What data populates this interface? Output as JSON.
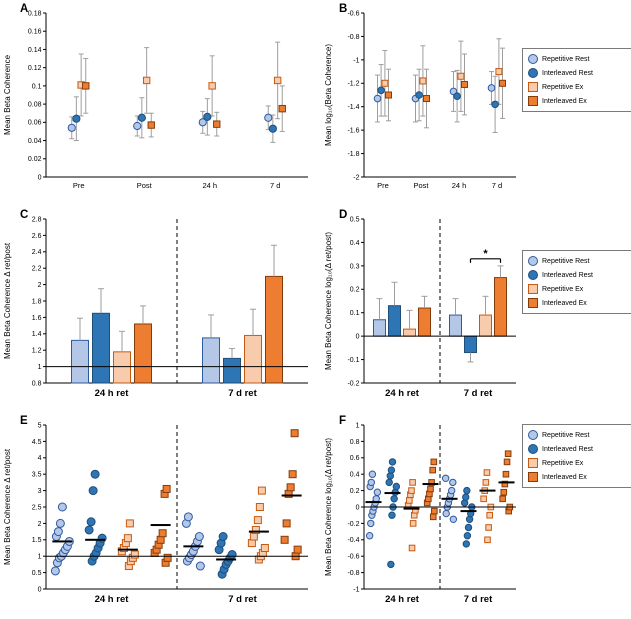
{
  "figure": {
    "background": "#ffffff"
  },
  "styles": {
    "rep_rest": {
      "shape": "circle",
      "fill": "#b4c7e7",
      "stroke": "#2e5b9f"
    },
    "int_rest": {
      "shape": "circle",
      "fill": "#2e75b6",
      "stroke": "#1f4e79"
    },
    "rep_ex": {
      "shape": "square",
      "fill": "#f8cbad",
      "stroke": "#c55a11"
    },
    "int_ex": {
      "shape": "square",
      "fill": "#ed7d31",
      "stroke": "#843c0c"
    }
  },
  "legend": {
    "entries": [
      {
        "key": "rep_rest",
        "label": "Repetitive Rest"
      },
      {
        "key": "int_rest",
        "label": "Interleaved Rest"
      },
      {
        "key": "rep_ex",
        "label": "Repetitive Ex"
      },
      {
        "key": "int_ex",
        "label": "Interleaved Ex"
      }
    ]
  },
  "chart_data": [
    {
      "id": "A",
      "label": "A",
      "type": "scatter",
      "render": "points",
      "ylabel": "Mean Beta Coherence",
      "ylim": [
        0,
        0.18
      ],
      "ytick_vals": [
        0,
        0.02,
        0.04,
        0.06,
        0.08,
        0.1,
        0.12,
        0.14,
        0.16,
        0.18
      ],
      "ytick_labels": [
        "0",
        "0.02",
        "0.04",
        "0.06",
        "0.08",
        "0.1",
        "0.12",
        "0.14",
        "0.16",
        "0.18"
      ],
      "categories": [
        "Pre",
        "Post",
        "24 h",
        "7 d"
      ],
      "series": [
        {
          "key": "rep_rest",
          "name": "Repetitive Rest",
          "values": [
            0.054,
            0.056,
            0.06,
            0.065
          ],
          "errors": [
            0.012,
            0.011,
            0.012,
            0.013
          ]
        },
        {
          "key": "int_rest",
          "name": "Interleaved Rest",
          "values": [
            0.064,
            0.065,
            0.066,
            0.053
          ],
          "errors": [
            0.024,
            0.022,
            0.02,
            0.015
          ]
        },
        {
          "key": "rep_ex",
          "name": "Repetitive Ex",
          "values": [
            0.101,
            0.106,
            0.1,
            0.106
          ],
          "errors": [
            0.034,
            0.036,
            0.033,
            0.042
          ]
        },
        {
          "key": "int_ex",
          "name": "Interleaved Ex",
          "values": [
            0.1,
            0.057,
            0.058,
            0.075
          ],
          "errors": [
            0.03,
            0.013,
            0.013,
            0.025
          ]
        }
      ]
    },
    {
      "id": "B",
      "label": "B",
      "type": "scatter",
      "render": "points",
      "ylabel": "Mean log₁₀(Beta Coherence)",
      "ylim": [
        -2,
        -0.6
      ],
      "ytick_vals": [
        -2,
        -1.8,
        -1.6,
        -1.4,
        -1.2,
        -1,
        -0.8,
        -0.6
      ],
      "ytick_labels": [
        "-2",
        "-1.8",
        "-1.6",
        "-1.4",
        "-1.2",
        "-1",
        "-0.8",
        "-0.6"
      ],
      "categories": [
        "Pre",
        "Post",
        "24 h",
        "7 d"
      ],
      "series": [
        {
          "key": "rep_rest",
          "name": "Repetitive Rest",
          "values": [
            -1.33,
            -1.33,
            -1.27,
            -1.24
          ],
          "errors": [
            0.2,
            0.2,
            0.17,
            0.14
          ]
        },
        {
          "key": "int_rest",
          "name": "Interleaved Rest",
          "values": [
            -1.26,
            -1.3,
            -1.31,
            -1.38
          ],
          "errors": [
            0.22,
            0.22,
            0.22,
            0.24
          ]
        },
        {
          "key": "rep_ex",
          "name": "Repetitive Ex",
          "values": [
            -1.2,
            -1.18,
            -1.14,
            -1.1
          ],
          "errors": [
            0.28,
            0.3,
            0.3,
            0.28
          ]
        },
        {
          "key": "int_ex",
          "name": "Interleaved Ex",
          "values": [
            -1.3,
            -1.33,
            -1.21,
            -1.2
          ],
          "errors": [
            0.22,
            0.25,
            0.26,
            0.3
          ]
        }
      ]
    },
    {
      "id": "C",
      "label": "C",
      "type": "bar",
      "render": "bars",
      "ylabel": "Mean Beta Coherence Δ ret/post",
      "ylim": [
        0.8,
        2.8
      ],
      "ytick_vals": [
        0.8,
        1,
        1.2,
        1.4,
        1.6,
        1.8,
        2,
        2.2,
        2.4,
        2.6,
        2.8
      ],
      "ytick_labels": [
        "0.8",
        "1",
        "1.2",
        "1.4",
        "1.6",
        "1.8",
        "2",
        "2.2",
        "2.4",
        "2.6",
        "2.8"
      ],
      "groups": [
        "24 h ret",
        "7 d ret"
      ],
      "baseline": 0.8,
      "refline": 1,
      "divider": true,
      "series": [
        {
          "key": "rep_rest",
          "name": "Repetitive Rest",
          "values": [
            1.32,
            1.35
          ],
          "errors": [
            0.27,
            0.28
          ]
        },
        {
          "key": "int_rest",
          "name": "Interleaved Rest",
          "values": [
            1.65,
            1.1
          ],
          "errors": [
            0.3,
            0.12
          ]
        },
        {
          "key": "rep_ex",
          "name": "Repetitive Ex",
          "values": [
            1.18,
            1.38
          ],
          "errors": [
            0.25,
            0.32
          ]
        },
        {
          "key": "int_ex",
          "name": "Interleaved Ex",
          "values": [
            1.52,
            2.1
          ],
          "errors": [
            0.22,
            0.38
          ]
        }
      ]
    },
    {
      "id": "D",
      "label": "D",
      "type": "bar",
      "render": "bars",
      "ylabel": "Mean Beta Coherence log₁₀(Δ ret/post)",
      "ylim": [
        -0.2,
        0.5
      ],
      "ytick_vals": [
        -0.2,
        -0.1,
        0,
        0.1,
        0.2,
        0.3,
        0.4,
        0.5
      ],
      "ytick_labels": [
        "-0.2",
        "-0.1",
        "0",
        "0.1",
        "0.2",
        "0.3",
        "0.4",
        "0.5"
      ],
      "groups": [
        "24 h ret",
        "7 d ret"
      ],
      "baseline": 0,
      "refline": 0,
      "divider": true,
      "sig": {
        "group": 1,
        "from": 1,
        "to": 3,
        "y": 0.33,
        "label": "*"
      },
      "series": [
        {
          "key": "rep_rest",
          "name": "Repetitive Rest",
          "values": [
            0.07,
            0.09
          ],
          "errors": [
            0.09,
            0.07
          ]
        },
        {
          "key": "int_rest",
          "name": "Interleaved Rest",
          "values": [
            0.13,
            -0.07
          ],
          "errors": [
            0.1,
            0.04
          ]
        },
        {
          "key": "rep_ex",
          "name": "Repetitive Ex",
          "values": [
            0.03,
            0.09
          ],
          "errors": [
            0.08,
            0.08
          ]
        },
        {
          "key": "int_ex",
          "name": "Interleaved Ex",
          "values": [
            0.12,
            0.25
          ],
          "errors": [
            0.05,
            0.05
          ]
        }
      ]
    },
    {
      "id": "E",
      "label": "E",
      "type": "scatter",
      "render": "jitter",
      "ylabel": "Mean Beta Coherence Δ ret/post",
      "ylim": [
        0,
        5
      ],
      "ytick_vals": [
        0,
        0.5,
        1,
        1.5,
        2,
        2.5,
        3,
        3.5,
        4,
        4.5,
        5
      ],
      "ytick_labels": [
        "0",
        "0.5",
        "1",
        "1.5",
        "2",
        "2.5",
        "3",
        "3.5",
        "4",
        "4.5",
        "5"
      ],
      "groups": [
        "24 h ret",
        "7 d ret"
      ],
      "refline": 1,
      "divider": true,
      "series": [
        {
          "key": "rep_rest",
          "name": "Repetitive Rest",
          "points": [
            [
              0.55,
              0.8,
              0.95,
              1.0,
              1.1,
              1.2,
              1.3,
              1.45,
              1.6,
              1.75,
              2.0,
              2.5
            ],
            [
              0.7,
              0.85,
              0.95,
              1.05,
              1.15,
              1.3,
              1.45,
              1.6,
              2.0,
              2.2
            ]
          ],
          "means": [
            1.45,
            1.3
          ]
        },
        {
          "key": "int_rest",
          "name": "Interleaved Rest",
          "points": [
            [
              0.85,
              1.0,
              1.1,
              1.25,
              1.4,
              1.55,
              1.8,
              2.05,
              3.0,
              3.5
            ],
            [
              0.45,
              0.6,
              0.75,
              0.85,
              0.95,
              1.05,
              1.2,
              1.4,
              1.6
            ]
          ],
          "means": [
            1.5,
            0.9
          ]
        },
        {
          "key": "rep_ex",
          "name": "Repetitive Ex",
          "points": [
            [
              0.7,
              0.85,
              0.95,
              1.05,
              1.15,
              1.25,
              1.4,
              1.55,
              2.0
            ],
            [
              0.9,
              1.0,
              1.1,
              1.25,
              1.4,
              1.6,
              1.8,
              2.1,
              2.5,
              3.0
            ]
          ],
          "means": [
            1.2,
            1.75
          ]
        },
        {
          "key": "int_ex",
          "name": "Interleaved Ex",
          "points": [
            [
              0.8,
              0.95,
              1.1,
              1.2,
              1.35,
              1.5,
              1.7,
              2.9,
              3.05
            ],
            [
              1.0,
              1.2,
              1.5,
              2.0,
              2.9,
              3.1,
              3.5,
              4.75
            ]
          ],
          "means": [
            1.95,
            2.85
          ]
        }
      ]
    },
    {
      "id": "F",
      "label": "F",
      "type": "scatter",
      "render": "jitter",
      "ylabel": "Mean Beta Coherence log₁₀(Δ ret/post)",
      "ylim": [
        -1,
        1
      ],
      "ytick_vals": [
        -1,
        -0.8,
        -0.6,
        -0.4,
        -0.2,
        0,
        0.2,
        0.4,
        0.6,
        0.8,
        1
      ],
      "ytick_labels": [
        "-1",
        "-0.8",
        "-0.6",
        "-0.4",
        "-0.2",
        "0",
        "0.2",
        "0.4",
        "0.6",
        "0.8",
        "1"
      ],
      "groups": [
        "24 h ret",
        "7 d ret"
      ],
      "refline": 0,
      "divider": true,
      "series": [
        {
          "key": "rep_rest",
          "name": "Repetitive Rest",
          "points": [
            [
              -0.35,
              -0.2,
              -0.1,
              -0.05,
              0.0,
              0.05,
              0.1,
              0.18,
              0.25,
              0.3,
              0.4
            ],
            [
              -0.15,
              -0.08,
              0.0,
              0.05,
              0.1,
              0.15,
              0.2,
              0.3,
              0.35
            ]
          ],
          "means": [
            0.06,
            0.1
          ]
        },
        {
          "key": "int_rest",
          "name": "Interleaved Rest",
          "points": [
            [
              -0.7,
              -0.1,
              0.0,
              0.1,
              0.18,
              0.25,
              0.3,
              0.38,
              0.45,
              0.55
            ],
            [
              -0.45,
              -0.35,
              -0.25,
              -0.15,
              -0.08,
              0.0,
              0.05,
              0.12,
              0.2
            ]
          ],
          "means": [
            0.17,
            -0.05
          ]
        },
        {
          "key": "rep_ex",
          "name": "Repetitive Ex",
          "points": [
            [
              -0.5,
              -0.2,
              -0.1,
              -0.04,
              0.02,
              0.08,
              0.15,
              0.2,
              0.3
            ],
            [
              -0.4,
              -0.25,
              -0.1,
              0.0,
              0.1,
              0.2,
              0.3,
              0.42
            ]
          ],
          "means": [
            -0.02,
            0.2
          ]
        },
        {
          "key": "int_ex",
          "name": "Interleaved Ex",
          "points": [
            [
              -0.12,
              -0.05,
              0.05,
              0.1,
              0.16,
              0.22,
              0.3,
              0.45,
              0.55
            ],
            [
              -0.05,
              0.0,
              0.1,
              0.18,
              0.28,
              0.4,
              0.55,
              0.65
            ]
          ],
          "means": [
            0.28,
            0.3
          ]
        }
      ]
    }
  ]
}
